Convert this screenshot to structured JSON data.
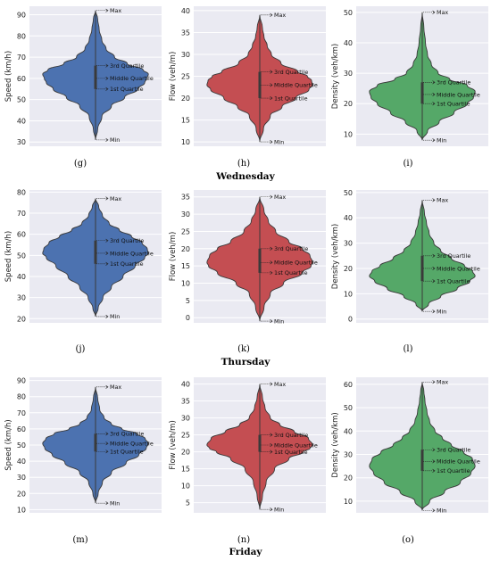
{
  "rows": [
    {
      "day_label": "Wednesday"
    },
    {
      "day_label": "Thursday"
    },
    {
      "day_label": "Friday"
    }
  ],
  "colors": {
    "speed": "#4c72b0",
    "flow": "#c44e52",
    "density": "#55a868",
    "plot_background": "#eaeaf2",
    "grid": "#ffffff"
  },
  "chart_data": [
    {
      "letter": "(g)",
      "type": "violin",
      "ylabel": "Speed (km/h)",
      "ylim": [
        28,
        94
      ],
      "yticks": [
        30,
        40,
        50,
        60,
        70,
        80,
        90
      ],
      "min": 31,
      "q1": 55,
      "median": 60,
      "q3": 66,
      "max": 92,
      "profile": [
        [
          31,
          0
        ],
        [
          36,
          0.04
        ],
        [
          42,
          0.12
        ],
        [
          47,
          0.3
        ],
        [
          51,
          0.55
        ],
        [
          55,
          0.8
        ],
        [
          58,
          0.93
        ],
        [
          60,
          0.97
        ],
        [
          62,
          1.0
        ],
        [
          64,
          0.9
        ],
        [
          67,
          0.6
        ],
        [
          70,
          0.36
        ],
        [
          74,
          0.2
        ],
        [
          78,
          0.12
        ],
        [
          83,
          0.07
        ],
        [
          88,
          0.04
        ],
        [
          92,
          0
        ]
      ],
      "annotations": {
        "max": "Max",
        "q3": "3rd Quartile",
        "median": "Middle Quartile",
        "q1": "1st Quartile",
        "min": "Min"
      }
    },
    {
      "letter": "(h)",
      "type": "violin",
      "ylabel": "Flow (veh/m)",
      "ylim": [
        9,
        41
      ],
      "yticks": [
        10,
        15,
        20,
        25,
        30,
        35,
        40
      ],
      "min": 10,
      "q1": 20,
      "median": 23,
      "q3": 26,
      "max": 39,
      "profile": [
        [
          10,
          0
        ],
        [
          13,
          0.07
        ],
        [
          16,
          0.2
        ],
        [
          18,
          0.42
        ],
        [
          20,
          0.68
        ],
        [
          22,
          0.93
        ],
        [
          23,
          1.0
        ],
        [
          24,
          0.98
        ],
        [
          25,
          0.9
        ],
        [
          26,
          0.72
        ],
        [
          28,
          0.4
        ],
        [
          30,
          0.22
        ],
        [
          32,
          0.14
        ],
        [
          34,
          0.08
        ],
        [
          36,
          0.05
        ],
        [
          39,
          0
        ]
      ],
      "annotations": {
        "max": "Max",
        "q3": "3rd Quartile",
        "median": "Middle Quartile",
        "q1": "1st Quartile",
        "min": "Min"
      }
    },
    {
      "letter": "(i)",
      "type": "violin",
      "ylabel": "Density (veh/km)",
      "ylim": [
        6,
        52
      ],
      "yticks": [
        10,
        20,
        30,
        40,
        50
      ],
      "min": 8,
      "q1": 20,
      "median": 23,
      "q3": 27,
      "max": 50,
      "profile": [
        [
          8,
          0
        ],
        [
          11,
          0.1
        ],
        [
          14,
          0.32
        ],
        [
          17,
          0.6
        ],
        [
          20,
          0.85
        ],
        [
          22,
          0.97
        ],
        [
          24,
          1.0
        ],
        [
          26,
          0.85
        ],
        [
          28,
          0.52
        ],
        [
          30,
          0.3
        ],
        [
          33,
          0.17
        ],
        [
          36,
          0.1
        ],
        [
          40,
          0.06
        ],
        [
          45,
          0.03
        ],
        [
          50,
          0
        ]
      ],
      "annotations": {
        "max": "Max",
        "q3": "3rd Quartile",
        "median": "Middle Quartile",
        "q1": "1st Quartile",
        "min": "Min"
      }
    },
    {
      "letter": "(j)",
      "type": "violin",
      "ylabel": "Speed (km/h)",
      "ylim": [
        18,
        81
      ],
      "yticks": [
        20,
        30,
        40,
        50,
        60,
        70,
        80
      ],
      "min": 21,
      "q1": 46,
      "median": 51,
      "q3": 57,
      "max": 77,
      "profile": [
        [
          21,
          0
        ],
        [
          25,
          0.05
        ],
        [
          30,
          0.14
        ],
        [
          35,
          0.3
        ],
        [
          40,
          0.52
        ],
        [
          45,
          0.75
        ],
        [
          49,
          0.93
        ],
        [
          51,
          1.0
        ],
        [
          53,
          0.98
        ],
        [
          56,
          0.88
        ],
        [
          59,
          0.68
        ],
        [
          62,
          0.45
        ],
        [
          65,
          0.26
        ],
        [
          69,
          0.13
        ],
        [
          73,
          0.06
        ],
        [
          77,
          0
        ]
      ],
      "annotations": {
        "max": "Max",
        "q3": "3rd Quartile",
        "median": "Middle Quartile",
        "q1": "1st Quartile",
        "min": "Min"
      }
    },
    {
      "letter": "(k)",
      "type": "violin",
      "ylabel": "Flow (veh/m)",
      "ylim": [
        -1.5,
        37
      ],
      "yticks": [
        0,
        5,
        10,
        15,
        20,
        25,
        30,
        35
      ],
      "min": -1,
      "q1": 13,
      "median": 16,
      "q3": 20,
      "max": 35,
      "profile": [
        [
          -1,
          0
        ],
        [
          3,
          0.08
        ],
        [
          7,
          0.2
        ],
        [
          10,
          0.45
        ],
        [
          13,
          0.8
        ],
        [
          15,
          0.97
        ],
        [
          16,
          1.0
        ],
        [
          18,
          0.95
        ],
        [
          20,
          0.8
        ],
        [
          22,
          0.55
        ],
        [
          25,
          0.3
        ],
        [
          28,
          0.16
        ],
        [
          31,
          0.08
        ],
        [
          35,
          0
        ]
      ],
      "annotations": {
        "max": "Max",
        "q3": "3rd Quartile",
        "median": "Middle Quartile",
        "q1": "1st Quartile",
        "min": "Min"
      }
    },
    {
      "letter": "(l)",
      "type": "violin",
      "ylabel": "Density (veh/km)",
      "ylim": [
        -1.5,
        51
      ],
      "yticks": [
        0,
        10,
        20,
        30,
        40,
        50
      ],
      "min": 3,
      "q1": 15,
      "median": 20,
      "q3": 25,
      "max": 47,
      "profile": [
        [
          3,
          0
        ],
        [
          6,
          0.12
        ],
        [
          9,
          0.35
        ],
        [
          12,
          0.66
        ],
        [
          15,
          0.9
        ],
        [
          17,
          1.0
        ],
        [
          19,
          0.95
        ],
        [
          21,
          0.8
        ],
        [
          24,
          0.55
        ],
        [
          27,
          0.35
        ],
        [
          30,
          0.22
        ],
        [
          34,
          0.13
        ],
        [
          38,
          0.08
        ],
        [
          42,
          0.04
        ],
        [
          47,
          0
        ]
      ],
      "annotations": {
        "max": "Max",
        "q3": "3rd Quartile",
        "median": "Middle Quartile",
        "q1": "1st Quartile",
        "min": "Min"
      }
    },
    {
      "letter": "(m)",
      "type": "violin",
      "ylabel": "Speed (km/h)",
      "ylim": [
        8,
        92
      ],
      "yticks": [
        10,
        20,
        30,
        40,
        50,
        60,
        70,
        80,
        90
      ],
      "min": 14,
      "q1": 46,
      "median": 51,
      "q3": 57,
      "max": 86,
      "profile": [
        [
          14,
          0
        ],
        [
          20,
          0.05
        ],
        [
          27,
          0.13
        ],
        [
          33,
          0.3
        ],
        [
          39,
          0.58
        ],
        [
          44,
          0.82
        ],
        [
          48,
          0.96
        ],
        [
          51,
          1.0
        ],
        [
          54,
          0.94
        ],
        [
          57,
          0.78
        ],
        [
          60,
          0.5
        ],
        [
          63,
          0.3
        ],
        [
          67,
          0.16
        ],
        [
          72,
          0.08
        ],
        [
          79,
          0.04
        ],
        [
          86,
          0
        ]
      ],
      "annotations": {
        "max": "Max",
        "q3": "3rd Quartile",
        "median": "Middle Quartile",
        "q1": "1st Quartile",
        "min": "Min"
      }
    },
    {
      "letter": "(n)",
      "type": "violin",
      "ylabel": "Flow (veh/m)",
      "ylim": [
        2,
        42
      ],
      "yticks": [
        5,
        10,
        15,
        20,
        25,
        30,
        35,
        40
      ],
      "min": 3,
      "q1": 20,
      "median": 22,
      "q3": 25,
      "max": 40,
      "profile": [
        [
          3,
          0
        ],
        [
          7,
          0.05
        ],
        [
          11,
          0.12
        ],
        [
          15,
          0.28
        ],
        [
          18,
          0.55
        ],
        [
          20,
          0.82
        ],
        [
          21,
          0.95
        ],
        [
          22,
          1.0
        ],
        [
          24,
          0.92
        ],
        [
          26,
          0.65
        ],
        [
          28,
          0.38
        ],
        [
          30,
          0.2
        ],
        [
          33,
          0.1
        ],
        [
          36,
          0.05
        ],
        [
          40,
          0
        ]
      ],
      "annotations": {
        "max": "Max",
        "q3": "3rd Quartile",
        "median": "Middle Quartile",
        "q1": "1st Quartile",
        "min": "Min"
      }
    },
    {
      "letter": "(o)",
      "type": "violin",
      "ylabel": "Density (veh/km)",
      "ylim": [
        5,
        63
      ],
      "yticks": [
        10,
        20,
        30,
        40,
        50,
        60
      ],
      "min": 6,
      "q1": 23,
      "median": 27,
      "q3": 32,
      "max": 61,
      "profile": [
        [
          6,
          0
        ],
        [
          10,
          0.14
        ],
        [
          14,
          0.42
        ],
        [
          18,
          0.72
        ],
        [
          22,
          0.92
        ],
        [
          25,
          1.0
        ],
        [
          28,
          0.95
        ],
        [
          31,
          0.78
        ],
        [
          34,
          0.55
        ],
        [
          37,
          0.38
        ],
        [
          40,
          0.24
        ],
        [
          44,
          0.14
        ],
        [
          48,
          0.09
        ],
        [
          53,
          0.05
        ],
        [
          57,
          0.03
        ],
        [
          61,
          0
        ]
      ],
      "annotations": {
        "max": "Max",
        "q3": "3rd Quartile",
        "median": "Middle Quartile",
        "q1": "1st Quartile",
        "min": "Min"
      }
    }
  ]
}
